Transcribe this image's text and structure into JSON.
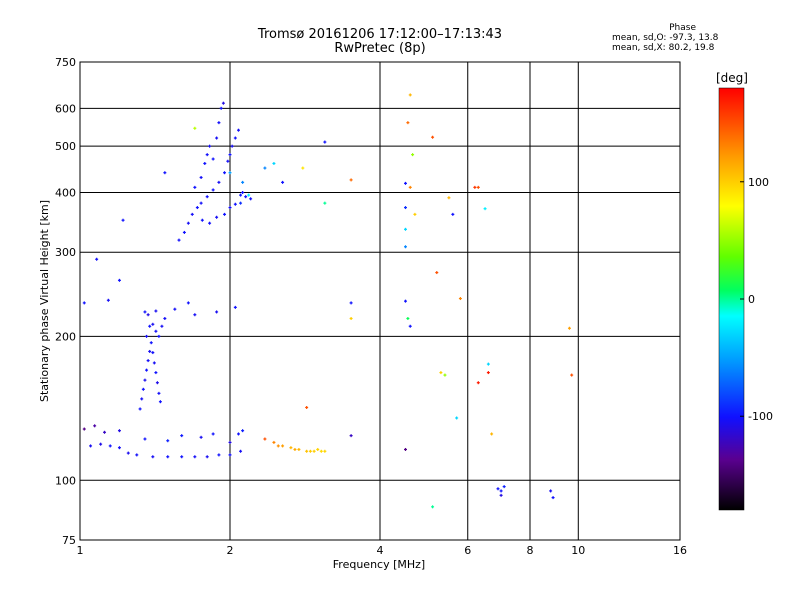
{
  "header": {
    "title": "Tromsø 20161206 17:12:00–17:13:43",
    "subtitle": "RwPretec (8p)"
  },
  "phase_info": {
    "heading": "Phase",
    "line_o": "mean, sd,O: -97.3, 13.8",
    "line_x": "mean, sd,X:  80.2, 19.8"
  },
  "colorbar": {
    "label": "[deg]",
    "ticks": [
      {
        "value": 100,
        "label": "100"
      },
      {
        "value": 0,
        "label": "0"
      },
      {
        "value": -100,
        "label": "-100"
      }
    ],
    "range": [
      -180,
      180
    ]
  },
  "chart_data": {
    "type": "scatter",
    "title": "Tromsø 20161206 17:12:00–17:13:43",
    "subtitle": "RwPretec (8p)",
    "xlabel": "Frequency [MHz]",
    "ylabel": "Stationary phase Virtual Height [km]",
    "x_scale": "log",
    "y_scale": "log",
    "xlim": [
      1,
      16
    ],
    "ylim": [
      75,
      750
    ],
    "x_ticks": [
      {
        "value": 1,
        "label": "1"
      },
      {
        "value": 2,
        "label": "2"
      },
      {
        "value": 4,
        "label": "4"
      },
      {
        "value": 6,
        "label": "6"
      },
      {
        "value": 8,
        "label": "8"
      },
      {
        "value": 10,
        "label": "10"
      },
      {
        "value": 16,
        "label": "16"
      }
    ],
    "x_gridlines": [
      2,
      4,
      6,
      8,
      10
    ],
    "y_ticks": [
      {
        "value": 75,
        "label": "75"
      },
      {
        "value": 100,
        "label": "100"
      },
      {
        "value": 200,
        "label": "200"
      },
      {
        "value": 300,
        "label": "300"
      },
      {
        "value": 400,
        "label": "400"
      },
      {
        "value": 500,
        "label": "500"
      },
      {
        "value": 600,
        "label": "600"
      },
      {
        "value": 750,
        "label": "750"
      }
    ],
    "y_gridlines": [
      100,
      200,
      300,
      400,
      500,
      600
    ],
    "color_encoding": "phase [deg]",
    "points": [
      [
        1.05,
        118,
        -105
      ],
      [
        1.1,
        119,
        -108
      ],
      [
        1.15,
        118,
        -100
      ],
      [
        1.2,
        117,
        -103
      ],
      [
        1.25,
        114,
        -106
      ],
      [
        1.3,
        113,
        -102
      ],
      [
        1.4,
        112,
        -104
      ],
      [
        1.5,
        112,
        -101
      ],
      [
        1.6,
        112,
        -100
      ],
      [
        1.7,
        112,
        -103
      ],
      [
        1.8,
        112,
        -105
      ],
      [
        1.9,
        113,
        -100
      ],
      [
        2.0,
        113,
        -102
      ],
      [
        2.1,
        115,
        -104
      ],
      [
        1.02,
        128,
        -140
      ],
      [
        1.07,
        130,
        -130
      ],
      [
        1.12,
        126,
        -120
      ],
      [
        1.2,
        127,
        -110
      ],
      [
        1.35,
        122,
        -100
      ],
      [
        1.5,
        121,
        -95
      ],
      [
        1.6,
        124,
        -98
      ],
      [
        1.75,
        123,
        -105
      ],
      [
        1.85,
        125,
        -100
      ],
      [
        2.0,
        120,
        -110
      ],
      [
        2.08,
        125,
        -100
      ],
      [
        2.12,
        127,
        -96
      ],
      [
        1.32,
        141,
        -100
      ],
      [
        1.33,
        148,
        -104
      ],
      [
        1.34,
        155,
        -100
      ],
      [
        1.35,
        162,
        -106
      ],
      [
        1.36,
        170,
        -100
      ],
      [
        1.37,
        178,
        -103
      ],
      [
        1.38,
        186,
        -105
      ],
      [
        1.39,
        194,
        -100
      ],
      [
        1.4,
        185,
        -102
      ],
      [
        1.41,
        176,
        -104
      ],
      [
        1.42,
        168,
        -100
      ],
      [
        1.43,
        160,
        -108
      ],
      [
        1.44,
        152,
        -103
      ],
      [
        1.45,
        146,
        -100
      ],
      [
        1.36,
        200,
        -104
      ],
      [
        1.38,
        210,
        -100
      ],
      [
        1.4,
        212,
        -105
      ],
      [
        1.42,
        205,
        -102
      ],
      [
        1.44,
        200,
        -100
      ],
      [
        1.46,
        210,
        -104
      ],
      [
        1.48,
        218,
        -103
      ],
      [
        1.35,
        225,
        -100
      ],
      [
        1.42,
        226,
        -105
      ],
      [
        1.37,
        222,
        -110
      ],
      [
        1.02,
        235,
        -100
      ],
      [
        1.08,
        290,
        -102
      ],
      [
        1.14,
        238,
        -104
      ],
      [
        1.2,
        262,
        -100
      ],
      [
        1.55,
        228,
        -103
      ],
      [
        1.65,
        235,
        -100
      ],
      [
        1.7,
        222,
        -104
      ],
      [
        1.88,
        225,
        -105
      ],
      [
        2.05,
        230,
        -100
      ],
      [
        1.58,
        318,
        -102
      ],
      [
        1.62,
        330,
        -100
      ],
      [
        1.65,
        345,
        -104
      ],
      [
        1.68,
        360,
        -103
      ],
      [
        1.72,
        372,
        -100
      ],
      [
        1.75,
        380,
        -102
      ],
      [
        1.8,
        392,
        -101
      ],
      [
        1.85,
        405,
        -100
      ],
      [
        1.9,
        420,
        -104
      ],
      [
        1.95,
        440,
        -100
      ],
      [
        1.98,
        465,
        -103
      ],
      [
        2.0,
        480,
        -100
      ],
      [
        2.02,
        500,
        -105
      ],
      [
        2.05,
        520,
        -101
      ],
      [
        2.08,
        540,
        -103
      ],
      [
        2.1,
        395,
        -98
      ],
      [
        2.12,
        400,
        -100
      ],
      [
        2.15,
        392,
        -99
      ],
      [
        2.2,
        388,
        -102
      ],
      [
        1.85,
        470,
        -100
      ],
      [
        1.88,
        520,
        -104
      ],
      [
        1.9,
        560,
        -102
      ],
      [
        1.92,
        600,
        -100
      ],
      [
        1.94,
        615,
        -110
      ],
      [
        1.7,
        410,
        -100
      ],
      [
        1.75,
        430,
        -103
      ],
      [
        1.78,
        460,
        -100
      ],
      [
        1.8,
        480,
        -102
      ],
      [
        1.82,
        500,
        -104
      ],
      [
        1.76,
        350,
        -100
      ],
      [
        1.82,
        345,
        -102
      ],
      [
        1.88,
        355,
        -104
      ],
      [
        1.95,
        360,
        -100
      ],
      [
        2.0,
        372,
        -103
      ],
      [
        2.05,
        378,
        -100
      ],
      [
        2.1,
        380,
        -90
      ],
      [
        2.12,
        420,
        -60
      ],
      [
        2.0,
        440,
        -50
      ],
      [
        2.18,
        395,
        -20
      ],
      [
        1.48,
        440,
        -100
      ],
      [
        1.7,
        545,
        60
      ],
      [
        1.22,
        350,
        -100
      ],
      [
        2.35,
        122,
        150
      ],
      [
        2.45,
        120,
        130
      ],
      [
        2.55,
        118,
        120
      ],
      [
        2.65,
        117,
        110
      ],
      [
        2.75,
        116,
        110
      ],
      [
        2.85,
        115,
        105
      ],
      [
        2.95,
        115,
        100
      ],
      [
        3.05,
        115,
        95
      ],
      [
        2.5,
        118,
        125
      ],
      [
        2.7,
        116,
        115
      ],
      [
        2.9,
        115,
        100
      ],
      [
        3.0,
        116,
        98
      ],
      [
        3.1,
        115,
        97
      ],
      [
        2.8,
        450,
        90
      ],
      [
        2.85,
        142,
        150
      ],
      [
        2.35,
        450,
        -60
      ],
      [
        2.45,
        460,
        -30
      ],
      [
        2.55,
        420,
        -100
      ],
      [
        3.1,
        510,
        -100
      ],
      [
        3.1,
        380,
        0
      ],
      [
        3.5,
        235,
        -100
      ],
      [
        3.5,
        218,
        100
      ],
      [
        3.5,
        425,
        140
      ],
      [
        3.5,
        124,
        -120
      ],
      [
        4.5,
        418,
        -100
      ],
      [
        4.5,
        372,
        -90
      ],
      [
        4.5,
        335,
        -30
      ],
      [
        4.5,
        308,
        -60
      ],
      [
        4.55,
        560,
        140
      ],
      [
        4.6,
        640,
        110
      ],
      [
        4.6,
        210,
        -100
      ],
      [
        4.5,
        237,
        -100
      ],
      [
        4.55,
        218,
        10
      ],
      [
        4.5,
        116,
        -140
      ],
      [
        4.65,
        480,
        50
      ],
      [
        4.6,
        410,
        130
      ],
      [
        4.7,
        360,
        100
      ],
      [
        5.1,
        522,
        150
      ],
      [
        5.2,
        272,
        150
      ],
      [
        5.3,
        168,
        100
      ],
      [
        5.4,
        166,
        50
      ],
      [
        5.5,
        390,
        110
      ],
      [
        5.6,
        360,
        -100
      ],
      [
        5.1,
        88,
        0
      ],
      [
        5.8,
        240,
        130
      ],
      [
        6.2,
        410,
        160
      ],
      [
        6.3,
        160,
        170
      ],
      [
        6.5,
        370,
        -20
      ],
      [
        6.3,
        410,
        150
      ],
      [
        5.7,
        135,
        -30
      ],
      [
        6.6,
        175,
        -30
      ],
      [
        6.6,
        168,
        170
      ],
      [
        6.7,
        125,
        110
      ],
      [
        6.9,
        96,
        -100
      ],
      [
        7.0,
        93,
        -110
      ],
      [
        7.1,
        97,
        -95
      ],
      [
        7.0,
        95,
        -100
      ],
      [
        8.8,
        95,
        -105
      ],
      [
        8.9,
        92,
        -100
      ],
      [
        9.6,
        208,
        120
      ],
      [
        9.7,
        166,
        150
      ]
    ]
  }
}
